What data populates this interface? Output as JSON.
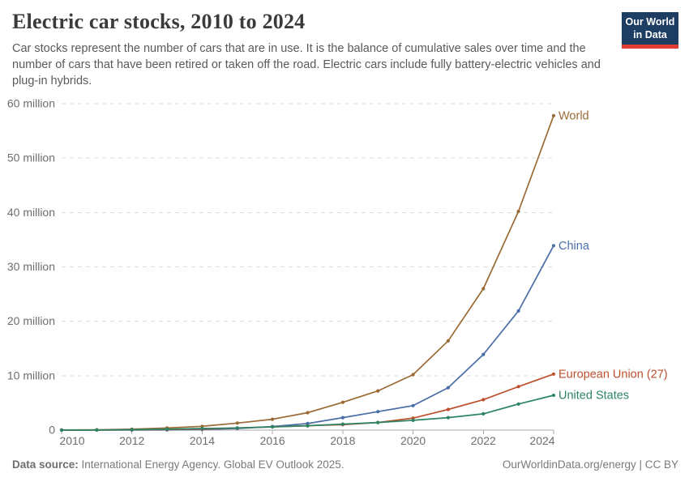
{
  "header": {
    "title": "Electric car stocks, 2010 to 2024",
    "subtitle": "Car stocks represent the number of cars that are in use. It is the balance of cumulative sales over time and the number of cars that have been retired or taken off the road. Electric cars include fully battery-electric vehicles and plug-in hybrids.",
    "logo": {
      "line1": "Our World",
      "line2": "in Data",
      "bg_color": "#1d3d63",
      "accent_color": "#e03c32"
    }
  },
  "footer": {
    "source_label": "Data source:",
    "source_text": " International Energy Agency. Global EV Outlook 2025.",
    "right_text": "OurWorldinData.org/energy | CC BY"
  },
  "chart_data": {
    "type": "line",
    "title": "Electric car stocks, 2010 to 2024",
    "unit": "million cars",
    "x": [
      2010,
      2011,
      2012,
      2013,
      2014,
      2015,
      2016,
      2017,
      2018,
      2019,
      2020,
      2021,
      2022,
      2023,
      2024
    ],
    "xlim": [
      2010,
      2024
    ],
    "ylim": [
      0,
      60
    ],
    "grid": "horizontal-dashed",
    "legend": "line-end-labels",
    "y_ticks": [
      {
        "value": 0,
        "label": "0"
      },
      {
        "value": 10,
        "label": "10 million"
      },
      {
        "value": 20,
        "label": "20 million"
      },
      {
        "value": 30,
        "label": "30 million"
      },
      {
        "value": 40,
        "label": "40 million"
      },
      {
        "value": 50,
        "label": "50 million"
      },
      {
        "value": 60,
        "label": "60 million"
      }
    ],
    "x_tick_years": [
      2010,
      2012,
      2014,
      2016,
      2018,
      2020,
      2022,
      2024
    ],
    "series": [
      {
        "name": "World",
        "color": "#9a6a35",
        "values": [
          0.02,
          0.06,
          0.18,
          0.4,
          0.7,
          1.3,
          2.0,
          3.2,
          5.1,
          7.2,
          10.2,
          16.4,
          26.0,
          40.2,
          57.8
        ]
      },
      {
        "name": "China",
        "color": "#4a6da8",
        "values": [
          0.01,
          0.01,
          0.02,
          0.03,
          0.1,
          0.3,
          0.65,
          1.2,
          2.3,
          3.4,
          4.5,
          7.8,
          13.9,
          21.9,
          33.9
        ]
      },
      {
        "name": "European Union (27)",
        "color": "#bc4f2c",
        "values": [
          0.0,
          0.02,
          0.05,
          0.1,
          0.2,
          0.4,
          0.6,
          0.8,
          1.0,
          1.4,
          2.2,
          3.8,
          5.6,
          8.0,
          10.3
        ]
      },
      {
        "name": "United States",
        "color": "#2d8465",
        "values": [
          0.0,
          0.02,
          0.07,
          0.17,
          0.3,
          0.4,
          0.6,
          0.8,
          1.1,
          1.4,
          1.8,
          2.3,
          3.0,
          4.8,
          6.4
        ]
      }
    ]
  }
}
